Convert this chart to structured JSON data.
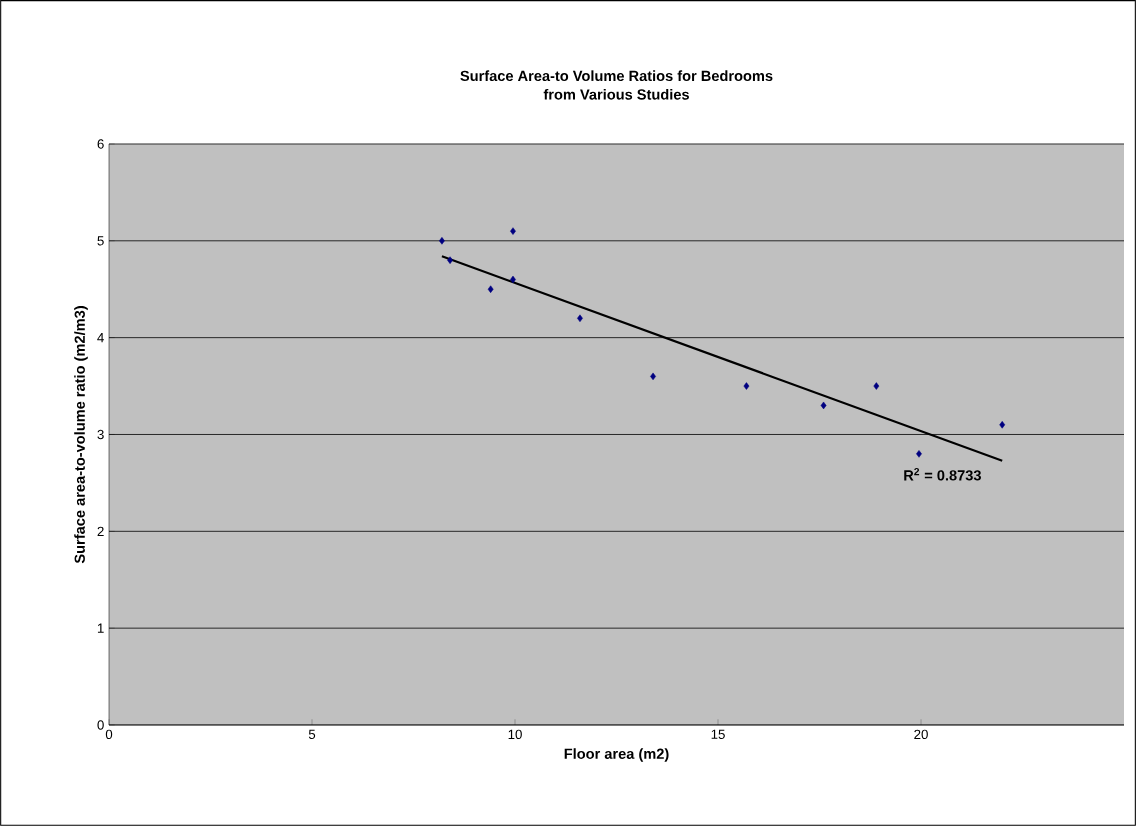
{
  "chart_data": {
    "type": "scatter",
    "title": "Surface Area-to Volume Ratios for Bedrooms\nfrom Various Studies",
    "xlabel": "Floor area (m2)",
    "ylabel": "Surface area-to-volume ratio (m2/m3)",
    "series": [
      {
        "color": "#000080",
        "marker": "diamond",
        "x": [
          8.2,
          8.4,
          9.4,
          9.95,
          9.95,
          11.6,
          13.4,
          15.7,
          17.6,
          18.9,
          19.95,
          22.0
        ],
        "values": [
          5.0,
          4.8,
          4.5,
          5.1,
          4.6,
          4.2,
          3.6,
          3.5,
          3.3,
          3.5,
          2.8,
          3.1
        ]
      },
      {
        "type": "line",
        "color": "#000000",
        "marker": "none",
        "x": [
          8.2,
          22.0
        ],
        "values": [
          4.84,
          2.73
        ]
      }
    ],
    "annotations": [
      "R$^{2}$ = 0.8733"
    ],
    "xlim": [
      0,
      25
    ],
    "ylim": [
      0,
      6
    ],
    "xticks": [
      0,
      5,
      10,
      15,
      20
    ],
    "yticks": [
      0,
      1,
      2,
      3,
      4,
      5,
      6
    ],
    "grid": "y"
  }
}
